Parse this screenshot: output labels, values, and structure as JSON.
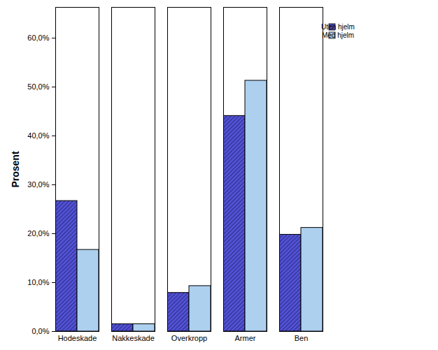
{
  "chart_data": {
    "type": "bar",
    "y_label": "Prosent",
    "categories": [
      "Hodeskade",
      "Nakkeskade",
      "Overkropp",
      "Armer",
      "Ben"
    ],
    "series": [
      {
        "name": "Uten hjelm",
        "color": "#5252d4",
        "values": [
          26.7,
          1.5,
          7.9,
          44.1,
          19.8
        ]
      },
      {
        "name": "Med hjelm",
        "color": "#add0ef",
        "values": [
          16.7,
          1.5,
          9.3,
          51.3,
          21.2
        ]
      }
    ],
    "ylim": [
      0,
      66.3
    ],
    "yticks": [
      {
        "value": 0,
        "label": "0,0%"
      },
      {
        "value": 10,
        "label": "10,0%"
      },
      {
        "value": 20,
        "label": "20,0%"
      },
      {
        "value": 30,
        "label": "30,0%"
      },
      {
        "value": 40,
        "label": "40,0%"
      },
      {
        "value": 50,
        "label": "50,0%"
      },
      {
        "value": 60,
        "label": "60,0%"
      }
    ],
    "grid": false,
    "legend": "right"
  }
}
